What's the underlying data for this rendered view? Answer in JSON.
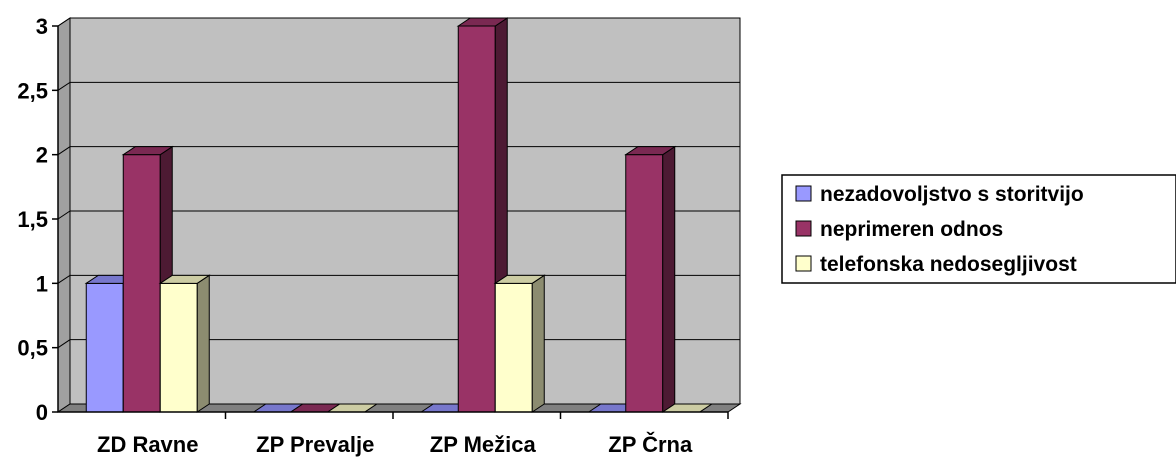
{
  "chart_data": {
    "type": "bar",
    "variant": "3d-clustered",
    "title": "",
    "xlabel": "",
    "ylabel": "",
    "categories": [
      "ZD Ravne",
      "ZP Prevalje",
      "ZP Mežica",
      "ZP Črna"
    ],
    "series": [
      {
        "name": "nezadovoljstvo s storitvijo",
        "values": [
          1,
          0,
          0,
          0
        ],
        "color": "#9999FF",
        "side": "#5A5A99",
        "top": "#7777CC"
      },
      {
        "name": "neprimeren odnos",
        "values": [
          2,
          0,
          3,
          2
        ],
        "color": "#993366",
        "side": "#4D1A33",
        "top": "#7A2952"
      },
      {
        "name": "telefonska nedosegljivost",
        "values": [
          1,
          0,
          1,
          0
        ],
        "color": "#FFFFCC",
        "side": "#8C8C70",
        "top": "#CCCCA3"
      }
    ],
    "ylim": [
      0,
      3
    ],
    "yticks": [
      "0",
      "0,5",
      "1",
      "1,5",
      "2",
      "2,5",
      "3"
    ],
    "grid": true,
    "legend_position": "right",
    "wall_color": "#C0C0C0",
    "floor_color": "#808080"
  }
}
